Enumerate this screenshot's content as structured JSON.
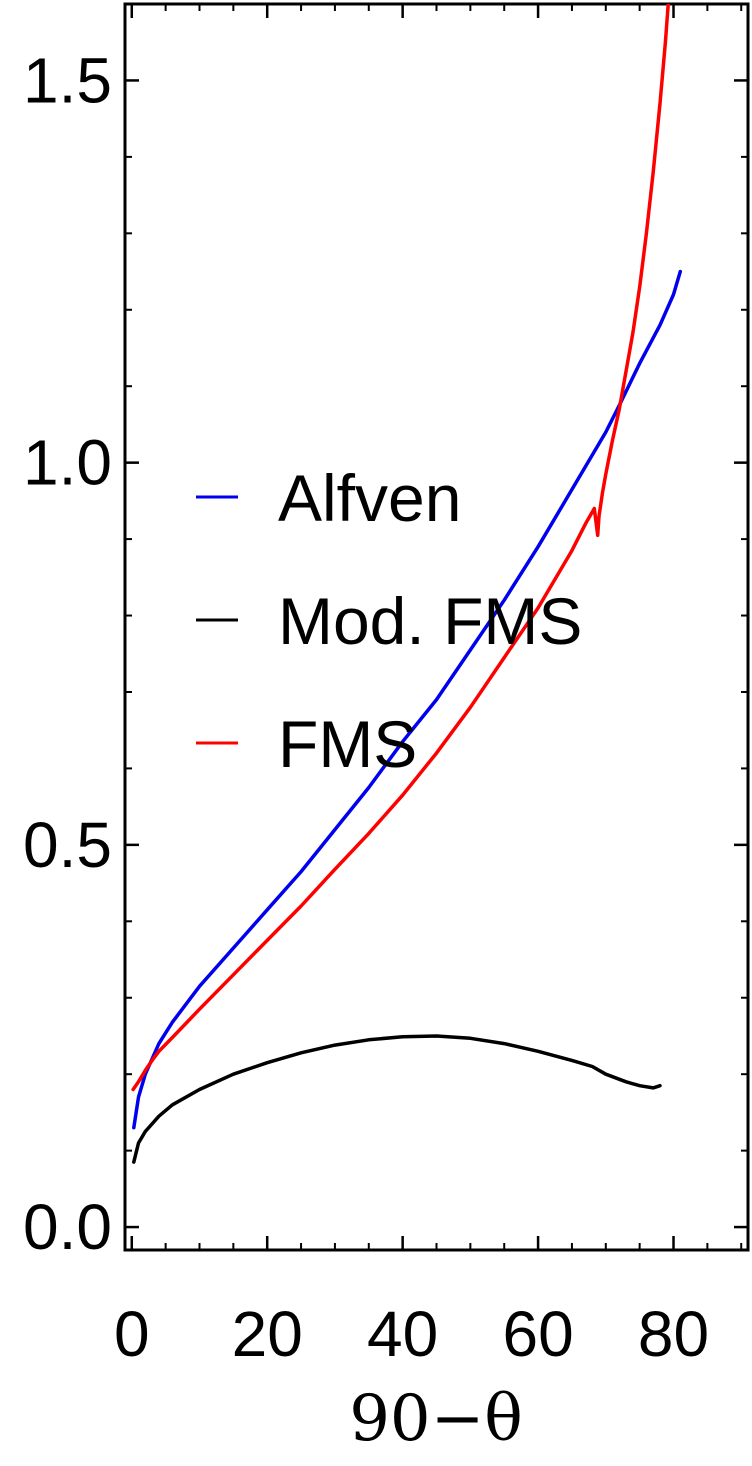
{
  "chart_data": {
    "type": "line",
    "title": "",
    "xlabel": "90−θ",
    "ylabel": "",
    "xlim": [
      -1,
      91
    ],
    "ylim": [
      -0.03,
      1.6
    ],
    "x_ticks": [
      0,
      20,
      40,
      60,
      80
    ],
    "y_ticks": [
      0.0,
      0.5,
      1.0,
      1.5
    ],
    "x_tick_labels": [
      "0",
      "20",
      "40",
      "60",
      "80"
    ],
    "y_tick_labels": [
      "0.0",
      "0.5",
      "1.0",
      "1.5"
    ],
    "grid": false,
    "frame": true,
    "legend_position": "center-left",
    "series": [
      {
        "name": "Alfven",
        "color": "#0000ee",
        "points": [
          [
            0.3,
            0.13
          ],
          [
            1,
            0.17
          ],
          [
            2,
            0.2
          ],
          [
            4,
            0.24
          ],
          [
            6,
            0.268
          ],
          [
            10,
            0.315
          ],
          [
            15,
            0.365
          ],
          [
            20,
            0.415
          ],
          [
            25,
            0.465
          ],
          [
            30,
            0.52
          ],
          [
            35,
            0.575
          ],
          [
            40,
            0.635
          ],
          [
            45,
            0.69
          ],
          [
            50,
            0.755
          ],
          [
            55,
            0.82
          ],
          [
            60,
            0.89
          ],
          [
            64,
            0.95
          ],
          [
            67,
            0.995
          ],
          [
            70,
            1.04
          ],
          [
            72,
            1.075
          ],
          [
            75,
            1.13
          ],
          [
            78,
            1.18
          ],
          [
            80,
            1.22
          ],
          [
            81,
            1.25
          ]
        ]
      },
      {
        "name": "Mod. FMS",
        "color": "#000000",
        "points": [
          [
            0.3,
            0.085
          ],
          [
            1,
            0.11
          ],
          [
            2,
            0.125
          ],
          [
            4,
            0.145
          ],
          [
            6,
            0.16
          ],
          [
            10,
            0.18
          ],
          [
            15,
            0.2
          ],
          [
            20,
            0.215
          ],
          [
            25,
            0.228
          ],
          [
            30,
            0.238
          ],
          [
            35,
            0.245
          ],
          [
            40,
            0.249
          ],
          [
            45,
            0.25
          ],
          [
            50,
            0.247
          ],
          [
            55,
            0.24
          ],
          [
            60,
            0.23
          ],
          [
            65,
            0.218
          ],
          [
            68,
            0.21
          ],
          [
            70,
            0.2
          ],
          [
            73,
            0.19
          ],
          [
            75,
            0.185
          ],
          [
            77,
            0.182
          ],
          [
            78,
            0.185
          ]
        ]
      },
      {
        "name": "FMS",
        "color": "#ff0000",
        "points": [
          [
            0.2,
            0.18
          ],
          [
            1,
            0.19
          ],
          [
            2,
            0.205
          ],
          [
            3,
            0.218
          ],
          [
            4,
            0.23
          ],
          [
            6,
            0.248
          ],
          [
            10,
            0.285
          ],
          [
            15,
            0.33
          ],
          [
            20,
            0.375
          ],
          [
            25,
            0.42
          ],
          [
            30,
            0.468
          ],
          [
            35,
            0.515
          ],
          [
            40,
            0.565
          ],
          [
            45,
            0.62
          ],
          [
            50,
            0.68
          ],
          [
            55,
            0.745
          ],
          [
            60,
            0.81
          ],
          [
            63,
            0.855
          ],
          [
            65,
            0.885
          ],
          [
            67,
            0.92
          ],
          [
            68.3,
            0.94
          ],
          [
            68.8,
            0.905
          ],
          [
            69,
            0.93
          ],
          [
            69.5,
            0.96
          ],
          [
            70,
            0.985
          ],
          [
            71,
            1.03
          ],
          [
            72,
            1.07
          ],
          [
            73,
            1.12
          ],
          [
            74,
            1.17
          ],
          [
            75,
            1.23
          ],
          [
            76,
            1.3
          ],
          [
            77,
            1.38
          ],
          [
            78,
            1.47
          ],
          [
            78.8,
            1.55
          ],
          [
            79.3,
            1.61
          ]
        ]
      }
    ]
  }
}
